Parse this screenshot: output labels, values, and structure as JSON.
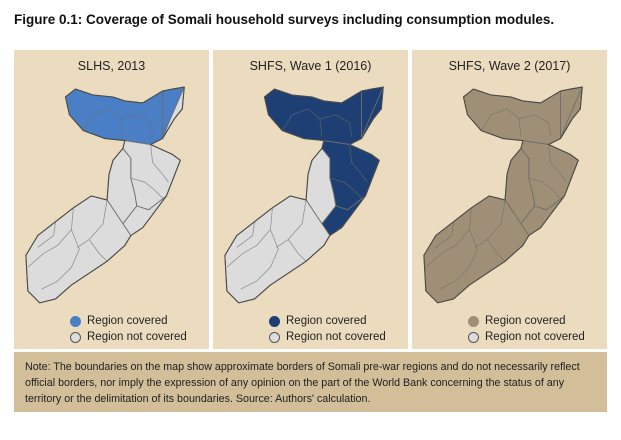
{
  "figure_title": "Figure 0.1: Coverage of Somali household surveys including consumption modules.",
  "panels": [
    {
      "title": "SLHS, 2013",
      "covered_color": "#4a7fc5",
      "covered_regions": [
        "north-west",
        "north-central"
      ],
      "legend_covered": "Region covered",
      "legend_not_covered": "Region not covered"
    },
    {
      "title": "SHFS, Wave 1 (2016)",
      "covered_color": "#1d3f73",
      "covered_regions": [
        "north-west",
        "north-central",
        "north-east",
        "central-east"
      ],
      "legend_covered": "Region covered",
      "legend_not_covered": "Region not covered"
    },
    {
      "title": "SHFS, Wave 2 (2017)",
      "covered_color": "#9f8f76",
      "covered_regions": [
        "north-west",
        "north-central",
        "north-east",
        "central-east",
        "central-west",
        "south"
      ],
      "legend_covered": "Region covered",
      "legend_not_covered": "Region not covered"
    }
  ],
  "colors": {
    "not_covered": "#dcdcdc",
    "panel_background": "#ecdcbf",
    "note_background": "#d2bf9a",
    "border": "#6e6e6e"
  },
  "note": "Note: The boundaries on the map show approximate borders of Somali pre-war regions and do not necessarily reflect official borders, nor imply the expression of any opinion on the part of the World Bank concerning the status of any territory or the delimitation of its boundaries. Source: Authors' calculation."
}
